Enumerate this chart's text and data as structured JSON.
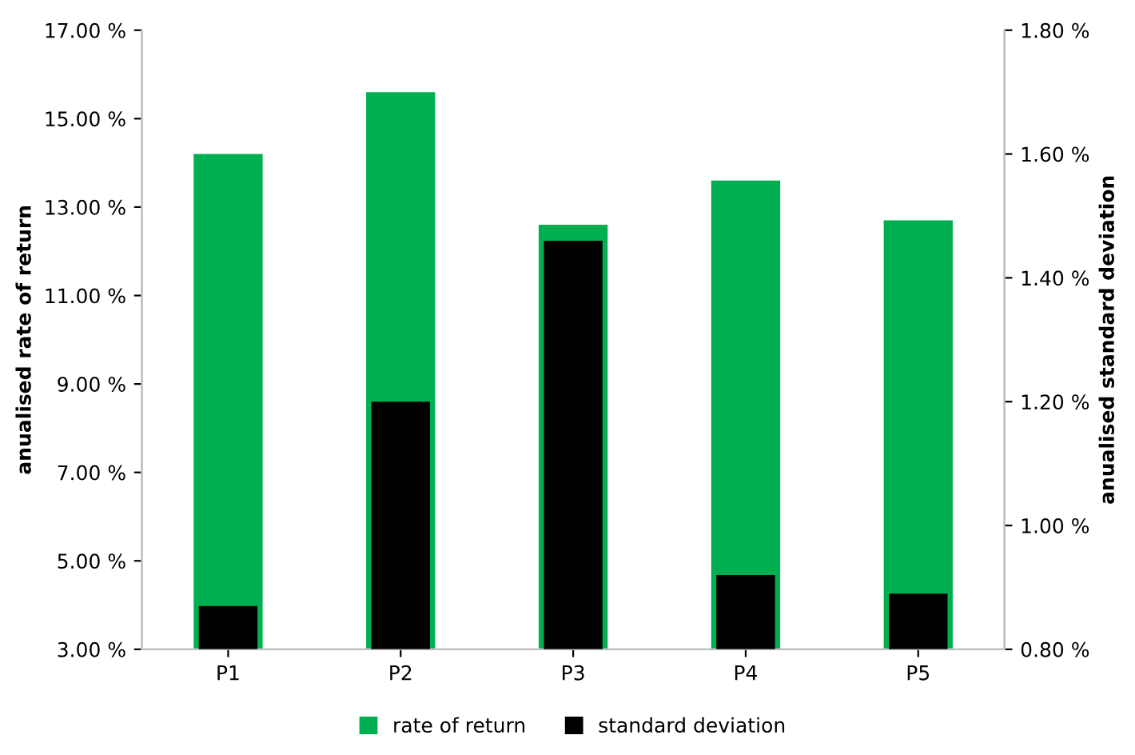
{
  "chart_data": {
    "type": "bar",
    "categories": [
      "P1",
      "P2",
      "P3",
      "P4",
      "P5"
    ],
    "series": [
      {
        "name": "rate of return",
        "color": "#00b050",
        "values": [
          14.2,
          15.6,
          12.6,
          13.6,
          12.7
        ]
      },
      {
        "name": "standard deviation",
        "color": "#000000",
        "axis": "y2",
        "values": [
          0.87,
          1.2,
          1.46,
          0.92,
          0.89
        ]
      }
    ],
    "ylabel": "anualised rate of return",
    "y2label": "anualised standard deviation",
    "ylim": [
      3,
      17
    ],
    "yticks": [
      {
        "value": 3,
        "label": "3.00 %"
      },
      {
        "value": 5,
        "label": "5.00 %"
      },
      {
        "value": 7,
        "label": "7.00 %"
      },
      {
        "value": 9,
        "label": "9.00 %"
      },
      {
        "value": 11,
        "label": "11.00 %"
      },
      {
        "value": 13,
        "label": "13.00 %"
      },
      {
        "value": 15,
        "label": "15.00 %"
      },
      {
        "value": 17,
        "label": "17.00 %"
      }
    ],
    "y2lim": [
      0.8,
      1.8
    ],
    "y2ticks": [
      {
        "value": 0.8,
        "label": "0.80 %"
      },
      {
        "value": 1.0,
        "label": "1.00 %"
      },
      {
        "value": 1.2,
        "label": "1.20 %"
      },
      {
        "value": 1.4,
        "label": "1.40 %"
      },
      {
        "value": 1.6,
        "label": "1.60 %"
      },
      {
        "value": 1.8,
        "label": "1.80 %"
      }
    ],
    "grid": false,
    "legend": "bottom"
  }
}
